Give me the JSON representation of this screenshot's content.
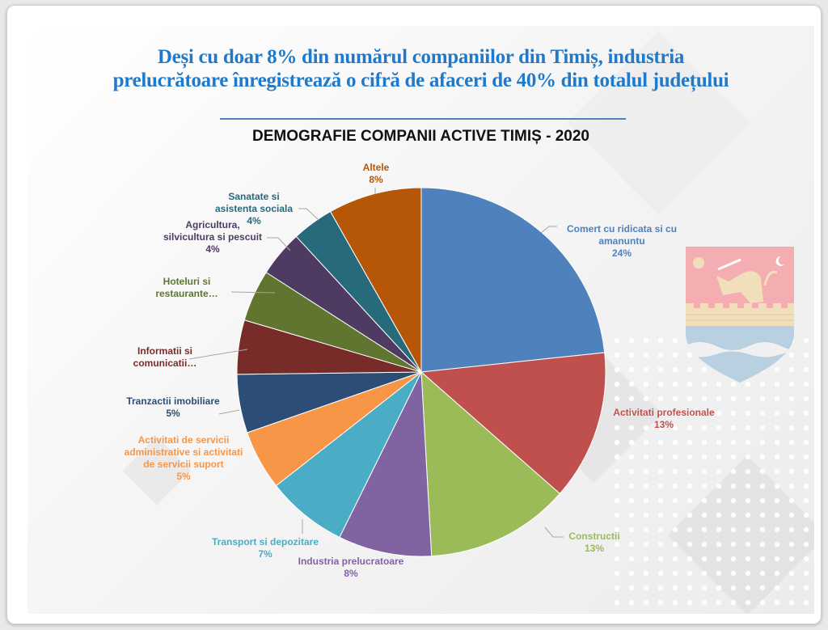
{
  "headline": {
    "line1": "Deși cu doar 8% din numărul companiilor din Timiș, industria",
    "line2": "prelucrătoare înregistrează o cifră de afaceri de 40% din totalul județului"
  },
  "chart_data": {
    "type": "pie",
    "title": "DEMOGRAFIE COMPANII ACTIVE TIMIȘ - 2020",
    "slices": [
      {
        "name": "Comert cu ridicata si cu amanuntu",
        "label": "Comert cu ridicata si cu\namanuntu",
        "pct_label": "24%",
        "value": 23.6,
        "color": "#4f81bd",
        "text_color": "#4f81bd"
      },
      {
        "name": "Activitati profesionale",
        "label": "Activitati profesionale",
        "pct_label": "13%",
        "value": 13.3,
        "color": "#c0504d",
        "text_color": "#c0504d"
      },
      {
        "name": "Constructii",
        "label": "Constructii",
        "pct_label": "13%",
        "value": 12.8,
        "color": "#9bbb59",
        "text_color": "#9bbb59"
      },
      {
        "name": "Industria prelucratoare",
        "label": "Industria prelucratoare",
        "pct_label": "8%",
        "value": 8.3,
        "color": "#8064a2",
        "text_color": "#8064a2"
      },
      {
        "name": "Transport si depozitare",
        "label": "Transport si depozitare",
        "pct_label": "7%",
        "value": 7.2,
        "color": "#4bacc6",
        "text_color": "#4bacc6"
      },
      {
        "name": "Activitati de servicii administrative si activitati de servicii suport",
        "label": "Activitati de servicii\nadministrative si activitati\nde servicii suport",
        "pct_label": "5%",
        "value": 5.3,
        "color": "#f79646",
        "text_color": "#f79646"
      },
      {
        "name": "Tranzactii imobiliare",
        "label": "Tranzactii imobiliare",
        "pct_label": "5%",
        "value": 5.2,
        "color": "#2c4d75",
        "text_color": "#2c4d75"
      },
      {
        "name": "Informatii si comunicatii",
        "label": "Informatii si\ncomunicatii…",
        "pct_label": null,
        "value": 4.8,
        "color": "#772c2a",
        "text_color": "#772c2a"
      },
      {
        "name": "Hoteluri si restaurante",
        "label": "Hoteluri si\nrestaurante…",
        "pct_label": null,
        "value": 4.6,
        "color": "#5f7530",
        "text_color": "#5f7530"
      },
      {
        "name": "Agricultura, silvicultura si pescuit",
        "label": "Agricultura,\nsilvicultura si pescuit",
        "pct_label": "4%",
        "value": 4.1,
        "color": "#4d3b62",
        "text_color": "#4d3b62"
      },
      {
        "name": "Sanatate si asistenta sociala",
        "label": "Sanatate si\nasistenta sociala",
        "pct_label": "4%",
        "value": 3.7,
        "color": "#276a7c",
        "text_color": "#276a7c"
      },
      {
        "name": "Altele",
        "label": "Altele",
        "pct_label": "8%",
        "value": 8.3,
        "color": "#b65708",
        "text_color": "#b65708"
      }
    ]
  }
}
